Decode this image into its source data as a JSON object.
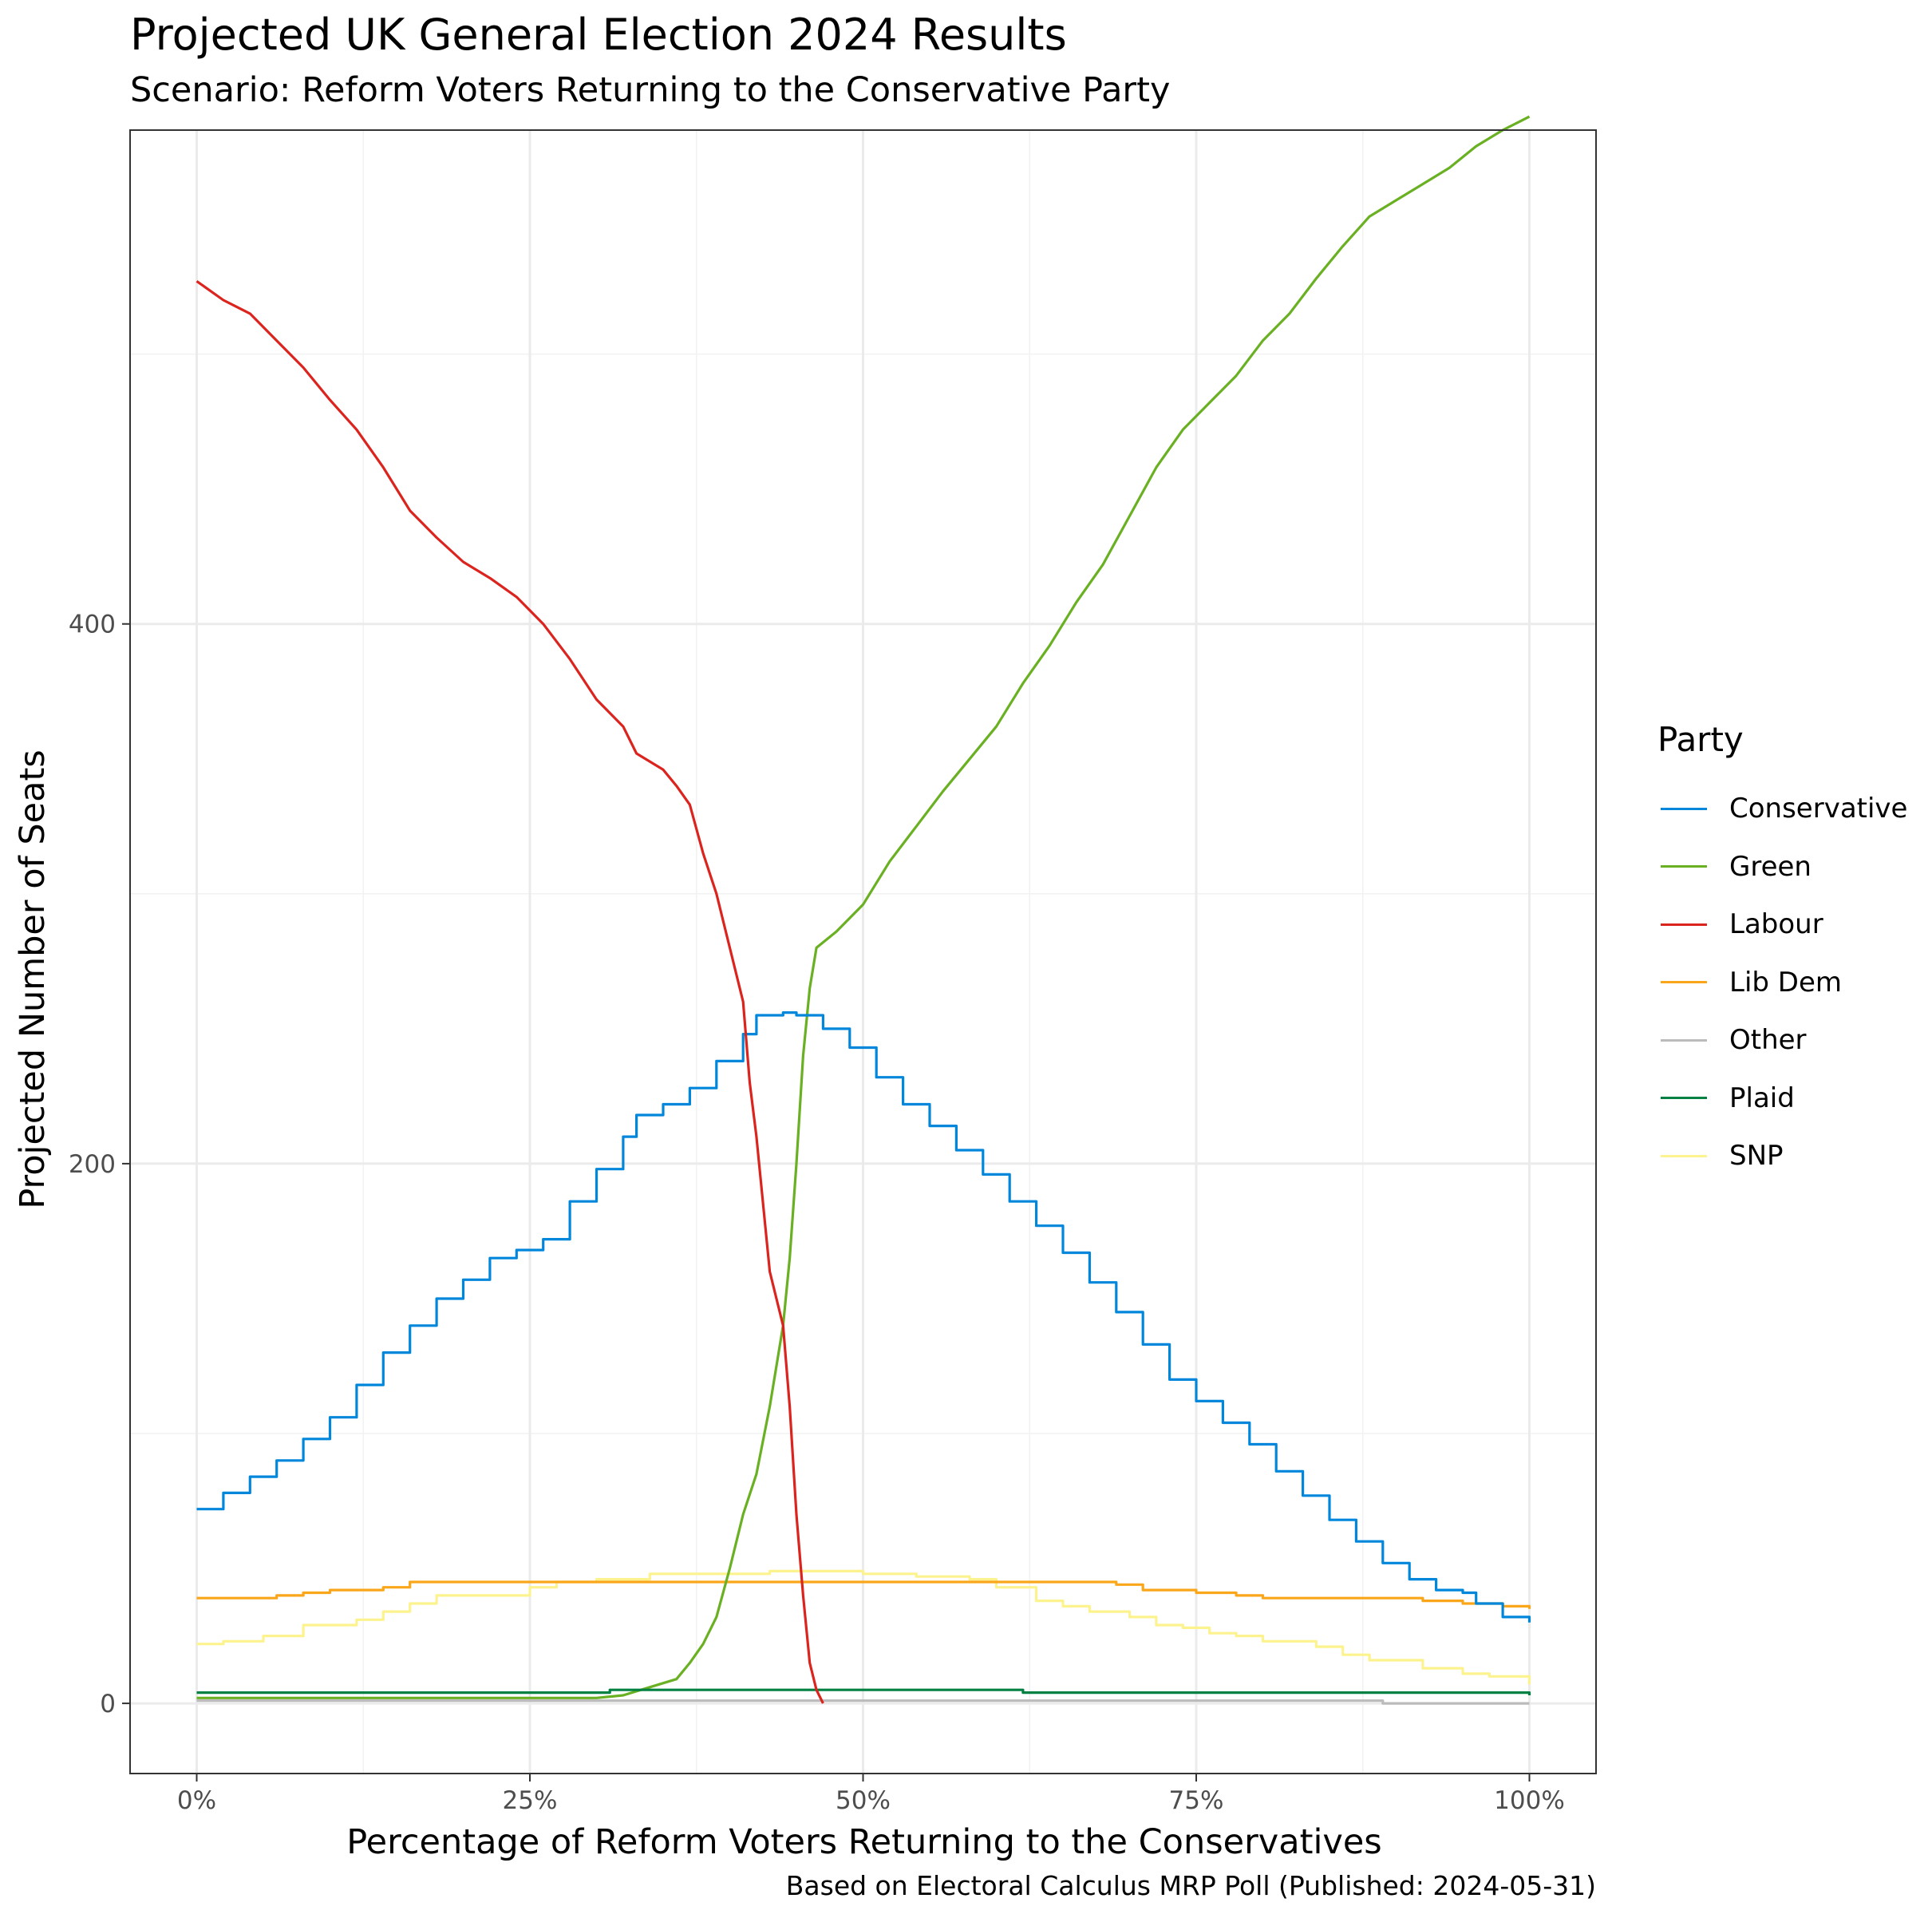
{
  "title": "Projected UK General Election 2024 Results",
  "subtitle": "Scenario: Reform Voters Returning to the Conservative Party",
  "caption": "Based on Electoral Calculus MRP Poll (Published: 2024-05-31)",
  "chart_data": {
    "type": "line",
    "xlabel": "Percentage of Reform Voters Returning to the Conservatives",
    "ylabel": "Projected Number of Seats",
    "xlim": [
      -5,
      105
    ],
    "ylim": [
      -26,
      583
    ],
    "x_ticks": [
      0,
      25,
      50,
      75,
      100
    ],
    "x_tick_labels": [
      "0%",
      "25%",
      "50%",
      "75%",
      "100%"
    ],
    "y_ticks": [
      0,
      200,
      400
    ],
    "y_tick_labels": [
      "0",
      "200",
      "400"
    ],
    "grid": true,
    "legend_title": "Party",
    "legend_position": "right",
    "series": [
      {
        "name": "Conservative",
        "color": "#0087DC",
        "step": true,
        "points": [
          [
            0,
            72
          ],
          [
            2,
            78
          ],
          [
            4,
            84
          ],
          [
            6,
            90
          ],
          [
            8,
            98
          ],
          [
            10,
            106
          ],
          [
            12,
            118
          ],
          [
            14,
            130
          ],
          [
            16,
            140
          ],
          [
            18,
            150
          ],
          [
            20,
            157
          ],
          [
            22,
            165
          ],
          [
            24,
            168
          ],
          [
            26,
            172
          ],
          [
            28,
            186
          ],
          [
            30,
            198
          ],
          [
            32,
            210
          ],
          [
            33,
            218
          ],
          [
            35,
            222
          ],
          [
            37,
            228
          ],
          [
            39,
            238
          ],
          [
            41,
            248
          ],
          [
            42,
            255
          ],
          [
            44,
            256
          ],
          [
            45,
            255
          ],
          [
            47,
            250
          ],
          [
            49,
            243
          ],
          [
            51,
            232
          ],
          [
            53,
            222
          ],
          [
            55,
            214
          ],
          [
            57,
            205
          ],
          [
            59,
            196
          ],
          [
            61,
            186
          ],
          [
            63,
            177
          ],
          [
            65,
            167
          ],
          [
            67,
            156
          ],
          [
            69,
            145
          ],
          [
            71,
            133
          ],
          [
            73,
            120
          ],
          [
            75,
            112
          ],
          [
            77,
            104
          ],
          [
            79,
            96
          ],
          [
            81,
            86
          ],
          [
            83,
            77
          ],
          [
            85,
            68
          ],
          [
            87,
            60
          ],
          [
            89,
            52
          ],
          [
            91,
            46
          ],
          [
            93,
            42
          ],
          [
            95,
            41
          ],
          [
            96,
            37
          ],
          [
            98,
            32
          ],
          [
            100,
            30
          ]
        ]
      },
      {
        "name": "Green",
        "color": "#6AB023",
        "step": false,
        "points": [
          [
            0,
            2
          ],
          [
            5,
            2
          ],
          [
            30,
            2
          ],
          [
            32,
            3
          ],
          [
            34,
            6
          ],
          [
            36,
            9
          ],
          [
            37,
            15
          ],
          [
            38,
            22
          ],
          [
            39,
            32
          ],
          [
            40,
            50
          ],
          [
            41,
            70
          ],
          [
            42,
            85
          ],
          [
            43,
            110
          ],
          [
            44,
            140
          ],
          [
            44.5,
            165
          ],
          [
            45,
            200
          ],
          [
            45.5,
            240
          ],
          [
            46,
            265
          ],
          [
            46.5,
            280
          ],
          [
            48,
            286
          ],
          [
            50,
            296
          ],
          [
            52,
            312
          ],
          [
            54,
            325
          ],
          [
            56,
            338
          ],
          [
            58,
            350
          ],
          [
            60,
            362
          ],
          [
            62,
            378
          ],
          [
            64,
            392
          ],
          [
            66,
            408
          ],
          [
            68,
            422
          ],
          [
            70,
            440
          ],
          [
            72,
            458
          ],
          [
            74,
            472
          ],
          [
            76,
            482
          ],
          [
            78,
            492
          ],
          [
            80,
            505
          ],
          [
            82,
            515
          ],
          [
            84,
            528
          ],
          [
            86,
            540
          ],
          [
            88,
            551
          ],
          [
            90,
            557
          ],
          [
            92,
            563
          ],
          [
            94,
            569
          ],
          [
            96,
            577
          ],
          [
            98,
            583
          ],
          [
            100,
            588
          ]
        ]
      },
      {
        "name": "Labour",
        "color": "#DC241F",
        "step": false,
        "points": [
          [
            0,
            527
          ],
          [
            2,
            520
          ],
          [
            4,
            515
          ],
          [
            6,
            505
          ],
          [
            8,
            495
          ],
          [
            10,
            483
          ],
          [
            12,
            472
          ],
          [
            14,
            458
          ],
          [
            16,
            442
          ],
          [
            18,
            432
          ],
          [
            20,
            423
          ],
          [
            22,
            417
          ],
          [
            24,
            410
          ],
          [
            26,
            400
          ],
          [
            28,
            387
          ],
          [
            30,
            372
          ],
          [
            32,
            362
          ],
          [
            33,
            352
          ],
          [
            35,
            346
          ],
          [
            36,
            340
          ],
          [
            37,
            333
          ],
          [
            38,
            315
          ],
          [
            39,
            300
          ],
          [
            40,
            280
          ],
          [
            41,
            260
          ],
          [
            41.5,
            230
          ],
          [
            42,
            210
          ],
          [
            43,
            160
          ],
          [
            44,
            140
          ],
          [
            44.5,
            110
          ],
          [
            45,
            70
          ],
          [
            45.5,
            40
          ],
          [
            46,
            15
          ],
          [
            46.5,
            5
          ],
          [
            47,
            0
          ]
        ]
      },
      {
        "name": "Lib Dem",
        "color": "#FAA61A",
        "step": true,
        "points": [
          [
            0,
            39
          ],
          [
            3,
            39
          ],
          [
            6,
            40
          ],
          [
            8,
            41
          ],
          [
            10,
            42
          ],
          [
            14,
            43
          ],
          [
            16,
            45
          ],
          [
            18,
            45
          ],
          [
            30,
            45
          ],
          [
            50,
            45
          ],
          [
            60,
            45
          ],
          [
            69,
            44
          ],
          [
            71,
            42
          ],
          [
            75,
            41
          ],
          [
            78,
            40
          ],
          [
            80,
            39
          ],
          [
            90,
            39
          ],
          [
            92,
            38
          ],
          [
            95,
            37
          ],
          [
            98,
            36
          ],
          [
            100,
            35
          ]
        ]
      },
      {
        "name": "Other",
        "color": "#BBBBBB",
        "step": true,
        "points": [
          [
            0,
            1
          ],
          [
            60,
            1
          ],
          [
            88,
            1
          ],
          [
            89,
            0
          ],
          [
            100,
            0
          ]
        ]
      },
      {
        "name": "Plaid",
        "color": "#008142",
        "step": true,
        "points": [
          [
            0,
            4
          ],
          [
            30,
            4
          ],
          [
            31,
            5
          ],
          [
            61,
            5
          ],
          [
            62,
            4
          ],
          [
            99,
            4
          ],
          [
            100,
            3
          ]
        ]
      },
      {
        "name": "SNP",
        "color": "#FDF38E",
        "step": true,
        "points": [
          [
            0,
            22
          ],
          [
            2,
            23
          ],
          [
            5,
            25
          ],
          [
            8,
            29
          ],
          [
            12,
            31
          ],
          [
            14,
            34
          ],
          [
            16,
            37
          ],
          [
            18,
            40
          ],
          [
            22,
            40
          ],
          [
            25,
            43
          ],
          [
            27,
            45
          ],
          [
            30,
            46
          ],
          [
            34,
            48
          ],
          [
            40,
            48
          ],
          [
            43,
            49
          ],
          [
            48,
            49
          ],
          [
            50,
            48
          ],
          [
            54,
            47
          ],
          [
            58,
            46
          ],
          [
            60,
            43
          ],
          [
            63,
            38
          ],
          [
            65,
            36
          ],
          [
            67,
            34
          ],
          [
            70,
            32
          ],
          [
            72,
            29
          ],
          [
            74,
            28
          ],
          [
            76,
            26
          ],
          [
            78,
            25
          ],
          [
            80,
            23
          ],
          [
            84,
            21
          ],
          [
            86,
            18
          ],
          [
            88,
            16
          ],
          [
            92,
            13
          ],
          [
            95,
            11
          ],
          [
            97,
            10
          ],
          [
            100,
            7
          ]
        ]
      }
    ]
  }
}
